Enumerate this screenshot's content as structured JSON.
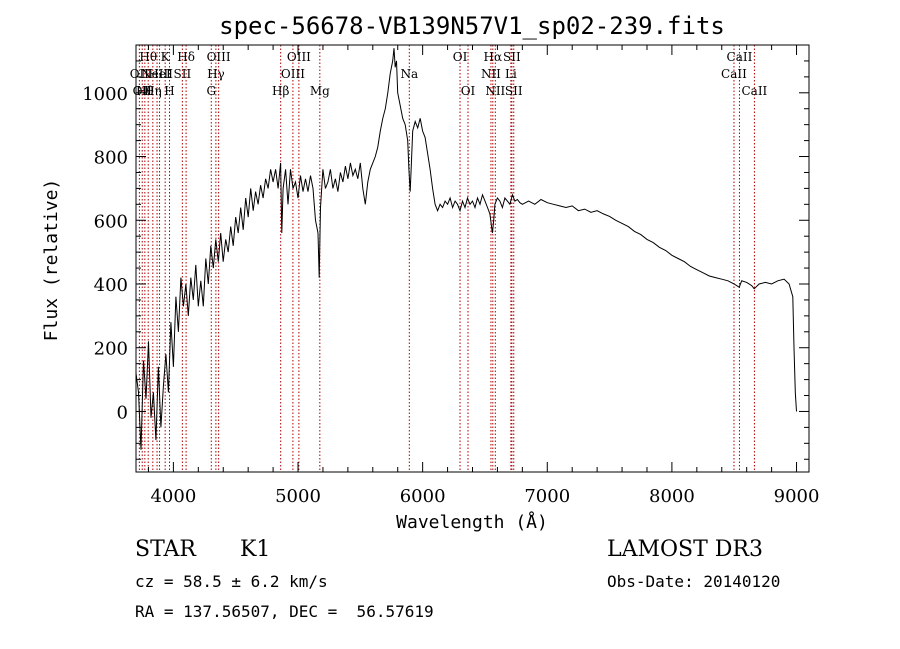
{
  "chart_data": {
    "type": "line",
    "title": "spec-56678-VB139N57V1_sp02-239.fits",
    "xlabel": "Wavelength (Å)",
    "ylabel": "Flux (relative)",
    "xlim": [
      3700,
      9100
    ],
    "ylim": [
      -190,
      1150
    ],
    "xticks": [
      4000,
      5000,
      6000,
      7000,
      8000,
      9000
    ],
    "yticks": [
      0,
      200,
      400,
      600,
      800,
      1000
    ],
    "grid": false,
    "line_color": "#000000",
    "marker_color": "#b00000",
    "series": [
      {
        "name": "spectrum",
        "points": [
          [
            3700,
            120
          ],
          [
            3720,
            60
          ],
          [
            3740,
            -120
          ],
          [
            3760,
            160
          ],
          [
            3780,
            40
          ],
          [
            3800,
            220
          ],
          [
            3820,
            -20
          ],
          [
            3840,
            60
          ],
          [
            3860,
            -90
          ],
          [
            3880,
            140
          ],
          [
            3900,
            -50
          ],
          [
            3920,
            80
          ],
          [
            3940,
            180
          ],
          [
            3960,
            60
          ],
          [
            3980,
            280
          ],
          [
            4000,
            140
          ],
          [
            4020,
            360
          ],
          [
            4040,
            250
          ],
          [
            4060,
            420
          ],
          [
            4080,
            330
          ],
          [
            4100,
            400
          ],
          [
            4120,
            300
          ],
          [
            4140,
            420
          ],
          [
            4160,
            350
          ],
          [
            4180,
            460
          ],
          [
            4200,
            330
          ],
          [
            4220,
            410
          ],
          [
            4240,
            330
          ],
          [
            4260,
            480
          ],
          [
            4280,
            400
          ],
          [
            4300,
            520
          ],
          [
            4320,
            450
          ],
          [
            4340,
            540
          ],
          [
            4360,
            470
          ],
          [
            4380,
            560
          ],
          [
            4400,
            470
          ],
          [
            4420,
            540
          ],
          [
            4440,
            500
          ],
          [
            4460,
            580
          ],
          [
            4480,
            520
          ],
          [
            4500,
            610
          ],
          [
            4520,
            560
          ],
          [
            4540,
            640
          ],
          [
            4560,
            570
          ],
          [
            4580,
            670
          ],
          [
            4600,
            610
          ],
          [
            4620,
            700
          ],
          [
            4640,
            630
          ],
          [
            4660,
            690
          ],
          [
            4680,
            650
          ],
          [
            4700,
            710
          ],
          [
            4720,
            670
          ],
          [
            4740,
            730
          ],
          [
            4760,
            700
          ],
          [
            4780,
            760
          ],
          [
            4800,
            720
          ],
          [
            4820,
            760
          ],
          [
            4840,
            700
          ],
          [
            4860,
            780
          ],
          [
            4870,
            560
          ],
          [
            4880,
            700
          ],
          [
            4900,
            760
          ],
          [
            4920,
            650
          ],
          [
            4940,
            760
          ],
          [
            4960,
            700
          ],
          [
            4980,
            720
          ],
          [
            5000,
            670
          ],
          [
            5020,
            740
          ],
          [
            5040,
            690
          ],
          [
            5060,
            730
          ],
          [
            5080,
            690
          ],
          [
            5100,
            740
          ],
          [
            5120,
            700
          ],
          [
            5140,
            600
          ],
          [
            5160,
            560
          ],
          [
            5170,
            420
          ],
          [
            5180,
            640
          ],
          [
            5200,
            760
          ],
          [
            5220,
            700
          ],
          [
            5240,
            720
          ],
          [
            5260,
            760
          ],
          [
            5280,
            700
          ],
          [
            5300,
            730
          ],
          [
            5320,
            690
          ],
          [
            5340,
            750
          ],
          [
            5360,
            720
          ],
          [
            5380,
            770
          ],
          [
            5400,
            730
          ],
          [
            5420,
            780
          ],
          [
            5440,
            740
          ],
          [
            5460,
            760
          ],
          [
            5480,
            730
          ],
          [
            5500,
            780
          ],
          [
            5520,
            700
          ],
          [
            5540,
            650
          ],
          [
            5560,
            720
          ],
          [
            5580,
            760
          ],
          [
            5600,
            780
          ],
          [
            5620,
            800
          ],
          [
            5640,
            830
          ],
          [
            5660,
            880
          ],
          [
            5680,
            920
          ],
          [
            5700,
            950
          ],
          [
            5720,
            1000
          ],
          [
            5740,
            1060
          ],
          [
            5760,
            1100
          ],
          [
            5770,
            1140
          ],
          [
            5780,
            1080
          ],
          [
            5790,
            1100
          ],
          [
            5800,
            1000
          ],
          [
            5820,
            960
          ],
          [
            5840,
            920
          ],
          [
            5860,
            900
          ],
          [
            5880,
            850
          ],
          [
            5890,
            760
          ],
          [
            5900,
            690
          ],
          [
            5910,
            780
          ],
          [
            5920,
            880
          ],
          [
            5940,
            910
          ],
          [
            5960,
            890
          ],
          [
            5980,
            920
          ],
          [
            6000,
            880
          ],
          [
            6020,
            860
          ],
          [
            6040,
            810
          ],
          [
            6060,
            760
          ],
          [
            6080,
            700
          ],
          [
            6100,
            650
          ],
          [
            6120,
            630
          ],
          [
            6140,
            650
          ],
          [
            6160,
            640
          ],
          [
            6180,
            660
          ],
          [
            6200,
            650
          ],
          [
            6220,
            670
          ],
          [
            6240,
            640
          ],
          [
            6260,
            660
          ],
          [
            6280,
            650
          ],
          [
            6300,
            630
          ],
          [
            6320,
            660
          ],
          [
            6340,
            640
          ],
          [
            6360,
            670
          ],
          [
            6380,
            650
          ],
          [
            6400,
            660
          ],
          [
            6420,
            640
          ],
          [
            6440,
            670
          ],
          [
            6460,
            650
          ],
          [
            6480,
            680
          ],
          [
            6500,
            660
          ],
          [
            6520,
            640
          ],
          [
            6540,
            620
          ],
          [
            6560,
            560
          ],
          [
            6570,
            600
          ],
          [
            6580,
            650
          ],
          [
            6600,
            670
          ],
          [
            6620,
            660
          ],
          [
            6640,
            640
          ],
          [
            6660,
            670
          ],
          [
            6680,
            660
          ],
          [
            6700,
            650
          ],
          [
            6720,
            680
          ],
          [
            6740,
            660
          ],
          [
            6760,
            665
          ],
          [
            6780,
            655
          ],
          [
            6800,
            650
          ],
          [
            6850,
            660
          ],
          [
            6900,
            650
          ],
          [
            6950,
            665
          ],
          [
            7000,
            655
          ],
          [
            7050,
            650
          ],
          [
            7100,
            645
          ],
          [
            7150,
            640
          ],
          [
            7200,
            645
          ],
          [
            7250,
            630
          ],
          [
            7300,
            635
          ],
          [
            7350,
            625
          ],
          [
            7400,
            630
          ],
          [
            7450,
            620
          ],
          [
            7500,
            612
          ],
          [
            7550,
            600
          ],
          [
            7600,
            590
          ],
          [
            7650,
            580
          ],
          [
            7700,
            565
          ],
          [
            7750,
            555
          ],
          [
            7800,
            540
          ],
          [
            7850,
            530
          ],
          [
            7900,
            515
          ],
          [
            7950,
            505
          ],
          [
            8000,
            490
          ],
          [
            8050,
            480
          ],
          [
            8100,
            470
          ],
          [
            8150,
            455
          ],
          [
            8200,
            445
          ],
          [
            8250,
            435
          ],
          [
            8300,
            425
          ],
          [
            8350,
            420
          ],
          [
            8400,
            415
          ],
          [
            8450,
            410
          ],
          [
            8500,
            400
          ],
          [
            8540,
            390
          ],
          [
            8560,
            410
          ],
          [
            8600,
            405
          ],
          [
            8640,
            395
          ],
          [
            8660,
            385
          ],
          [
            8700,
            400
          ],
          [
            8750,
            405
          ],
          [
            8800,
            400
          ],
          [
            8850,
            410
          ],
          [
            8900,
            415
          ],
          [
            8940,
            400
          ],
          [
            8970,
            360
          ],
          [
            8980,
            200
          ],
          [
            8990,
            60
          ],
          [
            9000,
            0
          ]
        ]
      }
    ],
    "line_markers": [
      {
        "wavelength": 3727,
        "row1": "",
        "row2": "OII",
        "row3": ""
      },
      {
        "wavelength": 3750,
        "row1": "",
        "row2": "",
        "row3": "OII"
      },
      {
        "wavelength": 3771,
        "row1": "",
        "row2": "",
        "row3": "Hθ"
      },
      {
        "wavelength": 3798,
        "row1": "Hθ",
        "row2": "",
        "row3": ""
      },
      {
        "wavelength": 3835,
        "row1": "",
        "row2": "",
        "row3": "Hη"
      },
      {
        "wavelength": 3869,
        "row1": "",
        "row2": "NeIII",
        "row3": ""
      },
      {
        "wavelength": 3889,
        "row1": "",
        "row2": "HeI",
        "row3": ""
      },
      {
        "wavelength": 3934,
        "row1": "K",
        "row2": "",
        "row3": ""
      },
      {
        "wavelength": 3969,
        "row1": "",
        "row2": "",
        "row3": "H"
      },
      {
        "wavelength": 4072,
        "row1": "",
        "row2": "SII",
        "row3": ""
      },
      {
        "wavelength": 4102,
        "row1": "Hδ",
        "row2": "",
        "row3": ""
      },
      {
        "wavelength": 4304,
        "row1": "",
        "row2": "",
        "row3": "G"
      },
      {
        "wavelength": 4341,
        "row1": "",
        "row2": "Hγ",
        "row3": ""
      },
      {
        "wavelength": 4363,
        "row1": "OIII",
        "row2": "",
        "row3": ""
      },
      {
        "wavelength": 4861,
        "row1": "",
        "row2": "",
        "row3": "Hβ"
      },
      {
        "wavelength": 4959,
        "row1": "",
        "row2": "OIII",
        "row3": ""
      },
      {
        "wavelength": 5007,
        "row1": "OIII",
        "row2": "",
        "row3": ""
      },
      {
        "wavelength": 5175,
        "row1": "",
        "row2": "",
        "row3": "Mg"
      },
      {
        "wavelength": 5893,
        "row1": "",
        "row2": "Na",
        "row3": ""
      },
      {
        "wavelength": 6300,
        "row1": "OI",
        "row2": "",
        "row3": ""
      },
      {
        "wavelength": 6364,
        "row1": "",
        "row2": "",
        "row3": "OI"
      },
      {
        "wavelength": 6548,
        "row1": "",
        "row2": "NII",
        "row3": ""
      },
      {
        "wavelength": 6563,
        "row1": "Hα",
        "row2": "",
        "row3": ""
      },
      {
        "wavelength": 6583,
        "row1": "",
        "row2": "",
        "row3": "NII"
      },
      {
        "wavelength": 6708,
        "row1": "",
        "row2": "Li",
        "row3": ""
      },
      {
        "wavelength": 6716,
        "row1": "SII",
        "row2": "",
        "row3": ""
      },
      {
        "wavelength": 6731,
        "row1": "",
        "row2": "",
        "row3": "SII"
      },
      {
        "wavelength": 8498,
        "row1": "",
        "row2": "CaII",
        "row3": ""
      },
      {
        "wavelength": 8542,
        "row1": "CaII",
        "row2": "",
        "row3": ""
      },
      {
        "wavelength": 8662,
        "row1": "",
        "row2": "",
        "row3": "CaII"
      }
    ]
  },
  "info": {
    "object_type": "STAR",
    "subclass": "K1",
    "survey": "LAMOST DR3",
    "redshift": "cz = 58.5 ± 6.2 km/s",
    "obs_date": "Obs-Date: 20140120",
    "coords": "RA = 137.56507, DEC =  56.57619"
  }
}
